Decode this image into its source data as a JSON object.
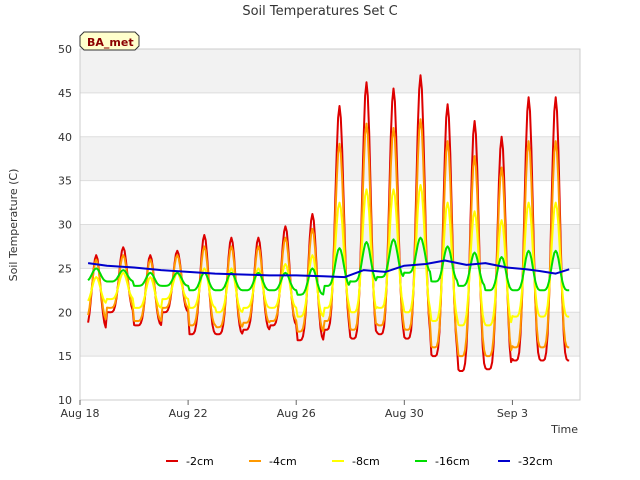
{
  "chart_data": {
    "type": "line",
    "title": "Soil Temperatures Set C",
    "xlabel": "Time",
    "ylabel": "Soil Temperature (C)",
    "ylim": [
      10,
      50
    ],
    "yticks": [
      10,
      15,
      20,
      25,
      30,
      35,
      40,
      45,
      50
    ],
    "xlim": [
      0,
      18.5
    ],
    "xticks": [
      {
        "label": "Aug 18",
        "day": 0
      },
      {
        "label": "Aug 22",
        "day": 4
      },
      {
        "label": "Aug 26",
        "day": 8
      },
      {
        "label": "Aug 30",
        "day": 12
      },
      {
        "label": "Sep 3",
        "day": 16
      }
    ],
    "x_unit": "days since Aug 18",
    "grid": "horizontal bands",
    "legend_position": "bottom",
    "badge": "BA_met",
    "series": [
      {
        "name": "-2cm",
        "color": "#dd0000",
        "daily_min": [
          18.0,
          20.0,
          18.5,
          20.0,
          17.5,
          17.5,
          18.0,
          18.5,
          16.8,
          18.0,
          17.0,
          17.5,
          17.0,
          15.0,
          13.3,
          13.5,
          14.5
        ],
        "daily_max": [
          26.5,
          27.4,
          26.5,
          27.0,
          28.8,
          28.5,
          28.5,
          29.8,
          31.2,
          43.5,
          46.2,
          45.5,
          47.0,
          43.7,
          41.8,
          40.0,
          44.5
        ]
      },
      {
        "name": "-4cm",
        "color": "#ff9900",
        "daily_min": [
          19.0,
          20.5,
          19.0,
          20.5,
          18.5,
          18.3,
          18.8,
          19.0,
          17.8,
          19.0,
          18.0,
          18.5,
          18.0,
          16.0,
          15.0,
          15.0,
          16.0
        ],
        "daily_max": [
          26.0,
          26.5,
          26.0,
          26.5,
          27.5,
          27.5,
          27.5,
          28.5,
          29.5,
          39.2,
          41.5,
          41.0,
          42.0,
          39.5,
          37.8,
          36.5,
          39.5
        ]
      },
      {
        "name": "-8cm",
        "color": "#ffff00",
        "daily_min": [
          21.0,
          21.5,
          20.5,
          21.5,
          20.5,
          20.0,
          20.5,
          20.5,
          19.5,
          20.5,
          20.0,
          20.5,
          20.0,
          19.0,
          18.5,
          18.5,
          19.5
        ],
        "daily_max": [
          24.0,
          24.5,
          24.0,
          24.5,
          25.0,
          25.0,
          25.0,
          25.5,
          26.5,
          32.5,
          34.0,
          34.0,
          34.5,
          32.5,
          31.5,
          30.5,
          32.5
        ]
      },
      {
        "name": "-16cm",
        "color": "#00dd00",
        "daily_min": [
          23.5,
          23.5,
          23.0,
          23.0,
          22.5,
          22.5,
          22.5,
          22.5,
          22.0,
          23.0,
          23.5,
          24.0,
          24.5,
          23.5,
          23.0,
          22.5,
          22.5
        ],
        "daily_max": [
          25.0,
          24.8,
          24.5,
          24.5,
          24.5,
          24.5,
          24.5,
          24.5,
          25.0,
          27.3,
          28.0,
          28.3,
          28.5,
          27.5,
          26.8,
          26.3,
          27.0
        ]
      },
      {
        "name": "-32cm",
        "color": "#0000cc",
        "points": [
          [
            0.3,
            25.6
          ],
          [
            1,
            25.3
          ],
          [
            2,
            25.1
          ],
          [
            3,
            24.8
          ],
          [
            4,
            24.6
          ],
          [
            5,
            24.4
          ],
          [
            6,
            24.3
          ],
          [
            7,
            24.2
          ],
          [
            8,
            24.2
          ],
          [
            9,
            24.1
          ],
          [
            9.8,
            24.0
          ],
          [
            10.5,
            24.8
          ],
          [
            11.3,
            24.6
          ],
          [
            12,
            25.3
          ],
          [
            12.8,
            25.5
          ],
          [
            13.5,
            25.9
          ],
          [
            14.3,
            25.4
          ],
          [
            15,
            25.6
          ],
          [
            15.8,
            25.1
          ],
          [
            16.5,
            24.9
          ],
          [
            17,
            24.7
          ],
          [
            17.6,
            24.4
          ],
          [
            18.1,
            24.9
          ]
        ]
      }
    ]
  }
}
